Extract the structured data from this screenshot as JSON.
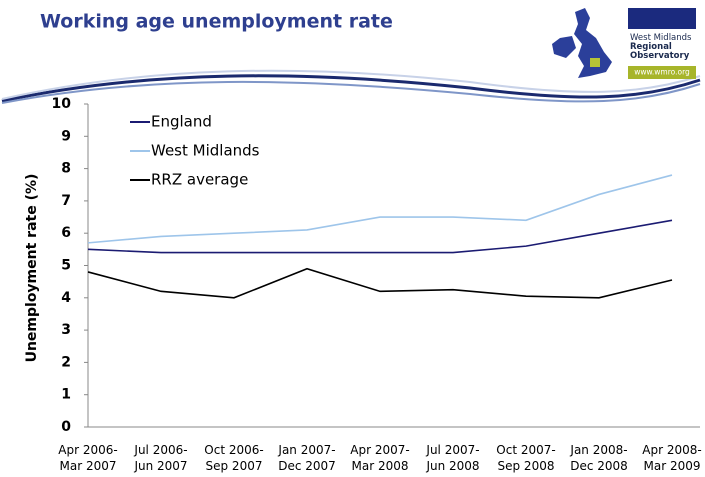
{
  "header": {
    "title": "Working age unemployment rate",
    "logo_lines": [
      "West Midlands",
      "Regional",
      "Observatory"
    ],
    "logo_url": "www.wmro.org"
  },
  "chart_data": {
    "type": "line",
    "y_label": "Unemployment rate (%)",
    "categories": [
      [
        "Apr 2006-",
        "Mar 2007"
      ],
      [
        "Jul 2006-",
        "Jun 2007"
      ],
      [
        "Oct 2006-",
        "Sep 2007"
      ],
      [
        "Jan 2007-",
        "Dec 2007"
      ],
      [
        "Apr 2007-",
        "Mar 2008"
      ],
      [
        "Jul 2007-",
        "Jun 2008"
      ],
      [
        "Oct 2007-",
        "Sep 2008"
      ],
      [
        "Jan 2008-",
        "Dec 2008"
      ],
      [
        "Apr 2008-",
        "Mar 2009"
      ]
    ],
    "series": [
      {
        "name": "England",
        "color": "#1b1b72",
        "values": [
          5.5,
          5.4,
          5.4,
          5.4,
          5.4,
          5.4,
          5.6,
          6.0,
          6.4
        ]
      },
      {
        "name": "West Midlands",
        "color": "#9ec5ea",
        "values": [
          5.7,
          5.9,
          6.0,
          6.1,
          6.5,
          6.5,
          6.4,
          7.2,
          7.8
        ]
      },
      {
        "name": "RRZ average",
        "color": "#000000",
        "values": [
          4.8,
          4.2,
          4.0,
          4.9,
          4.2,
          4.25,
          4.05,
          4.0,
          4.55
        ]
      }
    ],
    "ylim": [
      0,
      10
    ],
    "yticks": [
      0,
      1,
      2,
      3,
      4,
      5,
      6,
      7,
      8,
      9,
      10
    ],
    "grid": false,
    "legend": "top-left"
  }
}
